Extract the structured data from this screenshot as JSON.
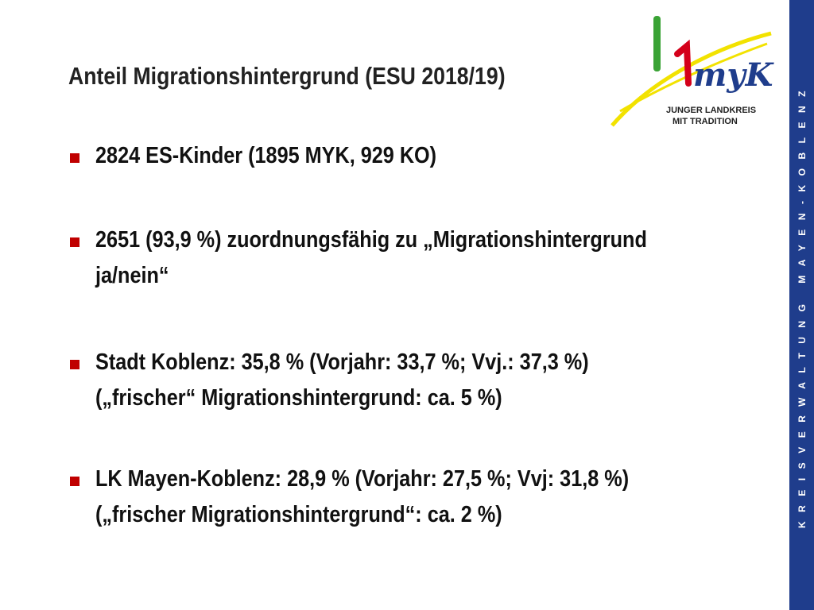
{
  "header": {
    "title": "Anteil Migrationshintergrund (ESU 2018/19)"
  },
  "logo": {
    "mark": "myK",
    "line1": "JUNGER LANDKREIS",
    "line2": "MIT TRADITION"
  },
  "sidebar": {
    "text": "KREISVERWALTUNG MAYEN-KOBLENZ"
  },
  "bullets": [
    {
      "lines": [
        "2824 ES-Kinder (1895 MYK, 929 KO)"
      ]
    },
    {
      "lines": [
        "2651 (93,9 %) zuordnungsfähig zu „Migrationshintergrund",
        "ja/nein“"
      ]
    },
    {
      "lines": [
        "Stadt Koblenz: 35,8 % (Vorjahr: 33,7 %; Vvj.: 37,3 %)",
        "(„frischer“ Migrationshintergrund: ca. 5 %)"
      ]
    },
    {
      "lines": [
        "LK Mayen-Koblenz: 28,9 % (Vorjahr: 27,5 %; Vvj: 31,8 %)",
        "(„frischer Migrationshintergrund“: ca. 2 %)"
      ]
    }
  ]
}
